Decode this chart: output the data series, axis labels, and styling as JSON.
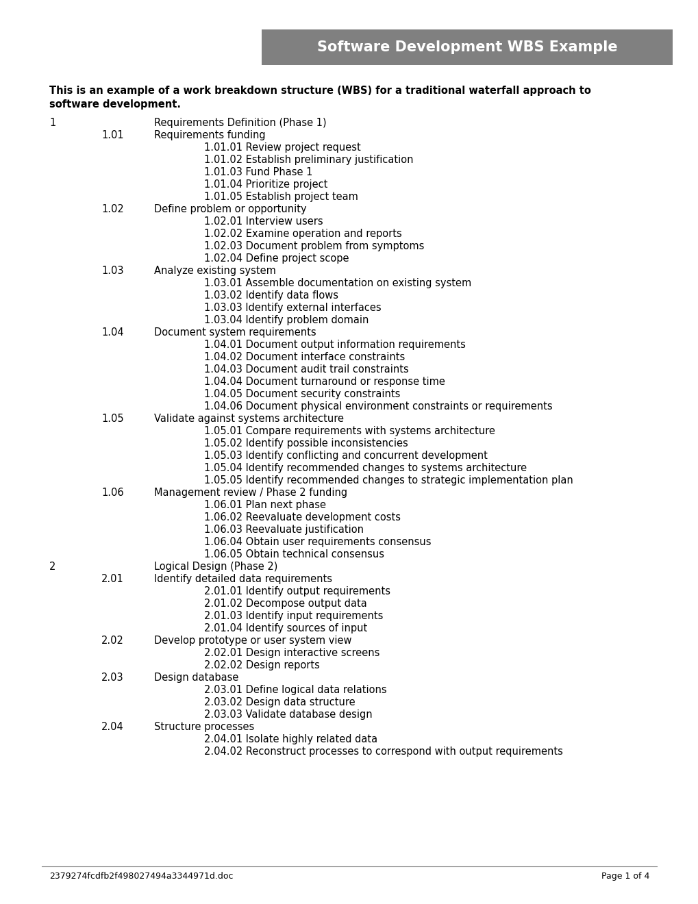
{
  "title": "Software Development WBS Example",
  "title_bg_color": "#808080",
  "title_text_color": "#ffffff",
  "subtitle_line1": "This is an example of a work breakdown structure (WBS) for a traditional waterfall approach to",
  "subtitle_line2": "software development.",
  "footer_left": "2379274fcdfb2f498027494a3344971d.doc",
  "footer_right": "Page 1 of 4",
  "bg_color": "#ffffff",
  "text_color": "#000000",
  "body_font_size": 10.5,
  "title_font_size": 15,
  "subtitle_font_size": 10.5,
  "footer_font_size": 9.0,
  "lines": [
    {
      "indent": 0,
      "num": "1",
      "text": "Requirements Definition (Phase 1)"
    },
    {
      "indent": 1,
      "num": "1.01",
      "text": "Requirements funding"
    },
    {
      "indent": 2,
      "num": "",
      "text": "1.01.01 Review project request"
    },
    {
      "indent": 2,
      "num": "",
      "text": "1.01.02 Establish preliminary justification"
    },
    {
      "indent": 2,
      "num": "",
      "text": "1.01.03 Fund Phase 1"
    },
    {
      "indent": 2,
      "num": "",
      "text": "1.01.04 Prioritize project"
    },
    {
      "indent": 2,
      "num": "",
      "text": "1.01.05 Establish project team"
    },
    {
      "indent": 1,
      "num": "1.02",
      "text": "Define problem or opportunity"
    },
    {
      "indent": 2,
      "num": "",
      "text": "1.02.01 Interview users"
    },
    {
      "indent": 2,
      "num": "",
      "text": "1.02.02 Examine operation and reports"
    },
    {
      "indent": 2,
      "num": "",
      "text": "1.02.03 Document problem from symptoms"
    },
    {
      "indent": 2,
      "num": "",
      "text": "1.02.04 Define project scope"
    },
    {
      "indent": 1,
      "num": "1.03",
      "text": "Analyze existing system"
    },
    {
      "indent": 2,
      "num": "",
      "text": "1.03.01 Assemble documentation on existing system"
    },
    {
      "indent": 2,
      "num": "",
      "text": "1.03.02 Identify data flows"
    },
    {
      "indent": 2,
      "num": "",
      "text": "1.03.03 Identify external interfaces"
    },
    {
      "indent": 2,
      "num": "",
      "text": "1.03.04 Identify problem domain"
    },
    {
      "indent": 1,
      "num": "1.04",
      "text": "Document system requirements"
    },
    {
      "indent": 2,
      "num": "",
      "text": "1.04.01 Document output information requirements"
    },
    {
      "indent": 2,
      "num": "",
      "text": "1.04.02 Document interface constraints"
    },
    {
      "indent": 2,
      "num": "",
      "text": "1.04.03 Document audit trail constraints"
    },
    {
      "indent": 2,
      "num": "",
      "text": "1.04.04 Document turnaround or response time"
    },
    {
      "indent": 2,
      "num": "",
      "text": "1.04.05 Document security constraints"
    },
    {
      "indent": 2,
      "num": "",
      "text": "1.04.06 Document physical environment constraints or requirements"
    },
    {
      "indent": 1,
      "num": "1.05",
      "text": "Validate against systems architecture"
    },
    {
      "indent": 2,
      "num": "",
      "text": "1.05.01 Compare requirements with systems architecture"
    },
    {
      "indent": 2,
      "num": "",
      "text": "1.05.02 Identify possible inconsistencies"
    },
    {
      "indent": 2,
      "num": "",
      "text": "1.05.03 Identify conflicting and concurrent development"
    },
    {
      "indent": 2,
      "num": "",
      "text": "1.05.04 Identify recommended changes to systems architecture"
    },
    {
      "indent": 2,
      "num": "",
      "text": "1.05.05 Identify recommended changes to strategic implementation plan"
    },
    {
      "indent": 1,
      "num": "1.06",
      "text": "Management review / Phase 2 funding"
    },
    {
      "indent": 2,
      "num": "",
      "text": "1.06.01 Plan next phase"
    },
    {
      "indent": 2,
      "num": "",
      "text": "1.06.02 Reevaluate development costs"
    },
    {
      "indent": 2,
      "num": "",
      "text": "1.06.03 Reevaluate justification"
    },
    {
      "indent": 2,
      "num": "",
      "text": "1.06.04 Obtain user requirements consensus"
    },
    {
      "indent": 2,
      "num": "",
      "text": "1.06.05 Obtain technical consensus"
    },
    {
      "indent": 0,
      "num": "2",
      "text": "Logical Design (Phase 2)"
    },
    {
      "indent": 1,
      "num": "2.01",
      "text": "Identify detailed data requirements"
    },
    {
      "indent": 2,
      "num": "",
      "text": "2.01.01 Identify output requirements"
    },
    {
      "indent": 2,
      "num": "",
      "text": "2.01.02 Decompose output data"
    },
    {
      "indent": 2,
      "num": "",
      "text": "2.01.03 Identify input requirements"
    },
    {
      "indent": 2,
      "num": "",
      "text": "2.01.04 Identify sources of input"
    },
    {
      "indent": 1,
      "num": "2.02",
      "text": "Develop prototype or user system view"
    },
    {
      "indent": 2,
      "num": "",
      "text": "2.02.01 Design interactive screens"
    },
    {
      "indent": 2,
      "num": "",
      "text": "2.02.02 Design reports"
    },
    {
      "indent": 1,
      "num": "2.03",
      "text": "Design database"
    },
    {
      "indent": 2,
      "num": "",
      "text": "2.03.01 Define logical data relations"
    },
    {
      "indent": 2,
      "num": "",
      "text": "2.03.02 Design data structure"
    },
    {
      "indent": 2,
      "num": "",
      "text": "2.03.03 Validate database design"
    },
    {
      "indent": 1,
      "num": "2.04",
      "text": "Structure processes"
    },
    {
      "indent": 2,
      "num": "",
      "text": "2.04.01 Isolate highly related data"
    },
    {
      "indent": 2,
      "num": "",
      "text": "2.04.02 Reconstruct processes to correspond with output requirements"
    }
  ]
}
